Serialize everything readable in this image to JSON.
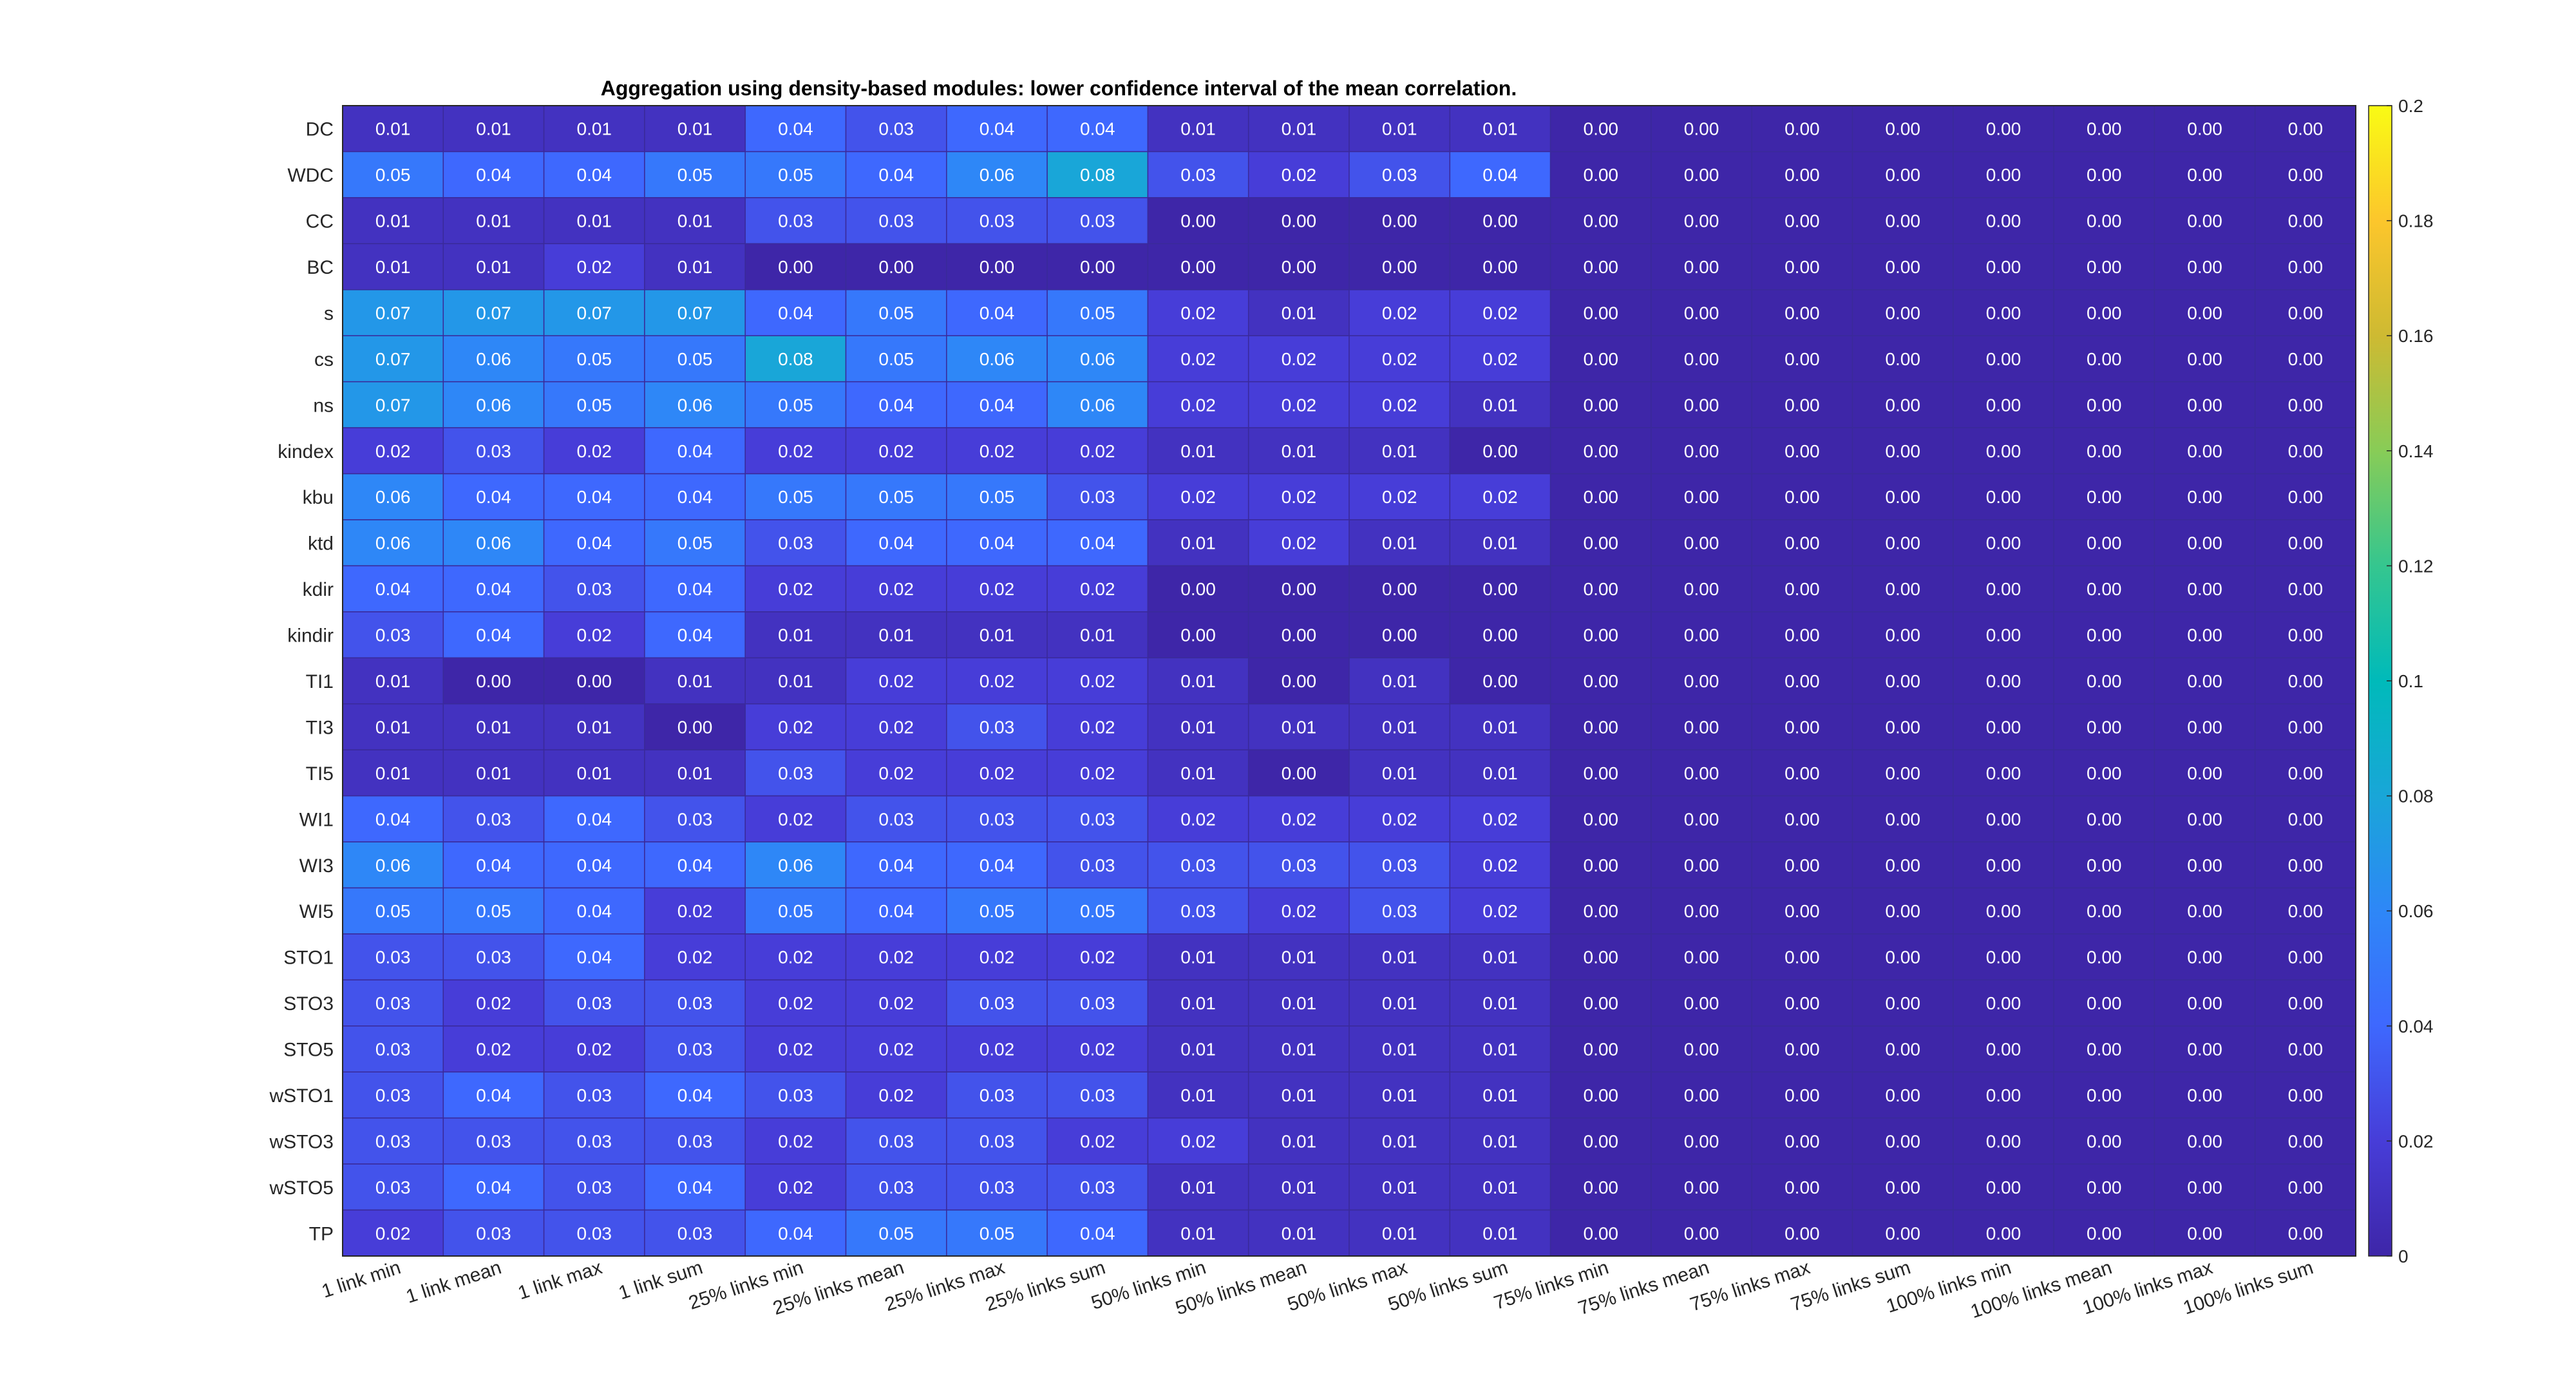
{
  "chart_data": {
    "type": "heatmap",
    "title": "Aggregation using density-based modules: lower confidence interval of the mean correlation.",
    "xlabel": "",
    "ylabel": "",
    "x_categories": [
      "1 link min",
      "1 link mean",
      "1 link max",
      "1 link sum",
      "25% links min",
      "25% links mean",
      "25% links max",
      "25% links sum",
      "50% links min",
      "50% links mean",
      "50% links max",
      "50% links sum",
      "75% links min",
      "75% links mean",
      "75% links max",
      "75% links sum",
      "100% links min",
      "100% links mean",
      "100% links max",
      "100% links sum"
    ],
    "y_categories": [
      "DC",
      "WDC",
      "CC",
      "BC",
      "s",
      "cs",
      "ns",
      "kindex",
      "kbu",
      "ktd",
      "kdir",
      "kindir",
      "TI1",
      "TI3",
      "TI5",
      "WI1",
      "WI3",
      "WI5",
      "STO1",
      "STO3",
      "STO5",
      "wSTO1",
      "wSTO3",
      "wSTO5",
      "TP"
    ],
    "values": [
      [
        0.01,
        0.01,
        0.01,
        0.01,
        0.04,
        0.03,
        0.04,
        0.04,
        0.01,
        0.01,
        0.01,
        0.01,
        0.0,
        0.0,
        0.0,
        0.0,
        0.0,
        0.0,
        0.0,
        0.0
      ],
      [
        0.05,
        0.04,
        0.04,
        0.05,
        0.05,
        0.04,
        0.06,
        0.08,
        0.03,
        0.02,
        0.03,
        0.04,
        0.0,
        0.0,
        0.0,
        0.0,
        0.0,
        0.0,
        0.0,
        0.0
      ],
      [
        0.01,
        0.01,
        0.01,
        0.01,
        0.03,
        0.03,
        0.03,
        0.03,
        0.0,
        0.0,
        0.0,
        0.0,
        0.0,
        0.0,
        0.0,
        0.0,
        0.0,
        0.0,
        0.0,
        0.0
      ],
      [
        0.01,
        0.01,
        0.02,
        0.01,
        0.0,
        0.0,
        0.0,
        0.0,
        0.0,
        0.0,
        0.0,
        0.0,
        0.0,
        0.0,
        0.0,
        0.0,
        0.0,
        0.0,
        0.0,
        0.0
      ],
      [
        0.07,
        0.07,
        0.07,
        0.07,
        0.04,
        0.05,
        0.04,
        0.05,
        0.02,
        0.01,
        0.02,
        0.02,
        0.0,
        0.0,
        0.0,
        0.0,
        0.0,
        0.0,
        0.0,
        0.0
      ],
      [
        0.07,
        0.06,
        0.05,
        0.05,
        0.08,
        0.05,
        0.06,
        0.06,
        0.02,
        0.02,
        0.02,
        0.02,
        0.0,
        0.0,
        0.0,
        0.0,
        0.0,
        0.0,
        0.0,
        0.0
      ],
      [
        0.07,
        0.06,
        0.05,
        0.06,
        0.05,
        0.04,
        0.04,
        0.06,
        0.02,
        0.02,
        0.02,
        0.01,
        0.0,
        0.0,
        0.0,
        0.0,
        0.0,
        0.0,
        0.0,
        0.0
      ],
      [
        0.02,
        0.03,
        0.02,
        0.04,
        0.02,
        0.02,
        0.02,
        0.02,
        0.01,
        0.01,
        0.01,
        0.0,
        0.0,
        0.0,
        0.0,
        0.0,
        0.0,
        0.0,
        0.0,
        0.0
      ],
      [
        0.06,
        0.04,
        0.04,
        0.04,
        0.05,
        0.05,
        0.05,
        0.03,
        0.02,
        0.02,
        0.02,
        0.02,
        0.0,
        0.0,
        0.0,
        0.0,
        0.0,
        0.0,
        0.0,
        0.0
      ],
      [
        0.06,
        0.06,
        0.04,
        0.05,
        0.03,
        0.04,
        0.04,
        0.04,
        0.01,
        0.02,
        0.01,
        0.01,
        0.0,
        0.0,
        0.0,
        0.0,
        0.0,
        0.0,
        0.0,
        0.0
      ],
      [
        0.04,
        0.04,
        0.03,
        0.04,
        0.02,
        0.02,
        0.02,
        0.02,
        0.0,
        0.0,
        0.0,
        0.0,
        0.0,
        0.0,
        0.0,
        0.0,
        0.0,
        0.0,
        0.0,
        0.0
      ],
      [
        0.03,
        0.04,
        0.02,
        0.04,
        0.01,
        0.01,
        0.01,
        0.01,
        0.0,
        0.0,
        0.0,
        0.0,
        0.0,
        0.0,
        0.0,
        0.0,
        0.0,
        0.0,
        0.0,
        0.0
      ],
      [
        0.01,
        0.0,
        0.0,
        0.01,
        0.01,
        0.02,
        0.02,
        0.02,
        0.01,
        0.0,
        0.01,
        0.0,
        0.0,
        0.0,
        0.0,
        0.0,
        0.0,
        0.0,
        0.0,
        0.0
      ],
      [
        0.01,
        0.01,
        0.01,
        0.0,
        0.02,
        0.02,
        0.03,
        0.02,
        0.01,
        0.01,
        0.01,
        0.01,
        0.0,
        0.0,
        0.0,
        0.0,
        0.0,
        0.0,
        0.0,
        0.0
      ],
      [
        0.01,
        0.01,
        0.01,
        0.01,
        0.03,
        0.02,
        0.02,
        0.02,
        0.01,
        0.0,
        0.01,
        0.01,
        0.0,
        0.0,
        0.0,
        0.0,
        0.0,
        0.0,
        0.0,
        0.0
      ],
      [
        0.04,
        0.03,
        0.04,
        0.03,
        0.02,
        0.03,
        0.03,
        0.03,
        0.02,
        0.02,
        0.02,
        0.02,
        0.0,
        0.0,
        0.0,
        0.0,
        0.0,
        0.0,
        0.0,
        0.0
      ],
      [
        0.06,
        0.04,
        0.04,
        0.04,
        0.06,
        0.04,
        0.04,
        0.03,
        0.03,
        0.03,
        0.03,
        0.02,
        0.0,
        0.0,
        0.0,
        0.0,
        0.0,
        0.0,
        0.0,
        0.0
      ],
      [
        0.05,
        0.05,
        0.04,
        0.02,
        0.05,
        0.04,
        0.05,
        0.05,
        0.03,
        0.02,
        0.03,
        0.02,
        0.0,
        0.0,
        0.0,
        0.0,
        0.0,
        0.0,
        0.0,
        0.0
      ],
      [
        0.03,
        0.03,
        0.04,
        0.02,
        0.02,
        0.02,
        0.02,
        0.02,
        0.01,
        0.01,
        0.01,
        0.01,
        0.0,
        0.0,
        0.0,
        0.0,
        0.0,
        0.0,
        0.0,
        0.0
      ],
      [
        0.03,
        0.02,
        0.03,
        0.03,
        0.02,
        0.02,
        0.03,
        0.03,
        0.01,
        0.01,
        0.01,
        0.01,
        0.0,
        0.0,
        0.0,
        0.0,
        0.0,
        0.0,
        0.0,
        0.0
      ],
      [
        0.03,
        0.02,
        0.02,
        0.03,
        0.02,
        0.02,
        0.02,
        0.02,
        0.01,
        0.01,
        0.01,
        0.01,
        0.0,
        0.0,
        0.0,
        0.0,
        0.0,
        0.0,
        0.0,
        0.0
      ],
      [
        0.03,
        0.04,
        0.03,
        0.04,
        0.03,
        0.02,
        0.03,
        0.03,
        0.01,
        0.01,
        0.01,
        0.01,
        0.0,
        0.0,
        0.0,
        0.0,
        0.0,
        0.0,
        0.0,
        0.0
      ],
      [
        0.03,
        0.03,
        0.03,
        0.03,
        0.02,
        0.03,
        0.03,
        0.02,
        0.02,
        0.01,
        0.01,
        0.01,
        0.0,
        0.0,
        0.0,
        0.0,
        0.0,
        0.0,
        0.0,
        0.0
      ],
      [
        0.03,
        0.04,
        0.03,
        0.04,
        0.02,
        0.03,
        0.03,
        0.03,
        0.01,
        0.01,
        0.01,
        0.01,
        0.0,
        0.0,
        0.0,
        0.0,
        0.0,
        0.0,
        0.0,
        0.0
      ],
      [
        0.02,
        0.03,
        0.03,
        0.03,
        0.04,
        0.05,
        0.05,
        0.04,
        0.01,
        0.01,
        0.01,
        0.01,
        0.0,
        0.0,
        0.0,
        0.0,
        0.0,
        0.0,
        0.0,
        0.0
      ]
    ],
    "colorbar": {
      "min": 0,
      "max": 0.2,
      "ticks": [
        "0",
        "0.02",
        "0.04",
        "0.06",
        "0.08",
        "0.1",
        "0.12",
        "0.14",
        "0.16",
        "0.18",
        "0.2"
      ],
      "colormap": "parula",
      "placement": "right"
    },
    "cell_labels": true,
    "grid": true
  }
}
